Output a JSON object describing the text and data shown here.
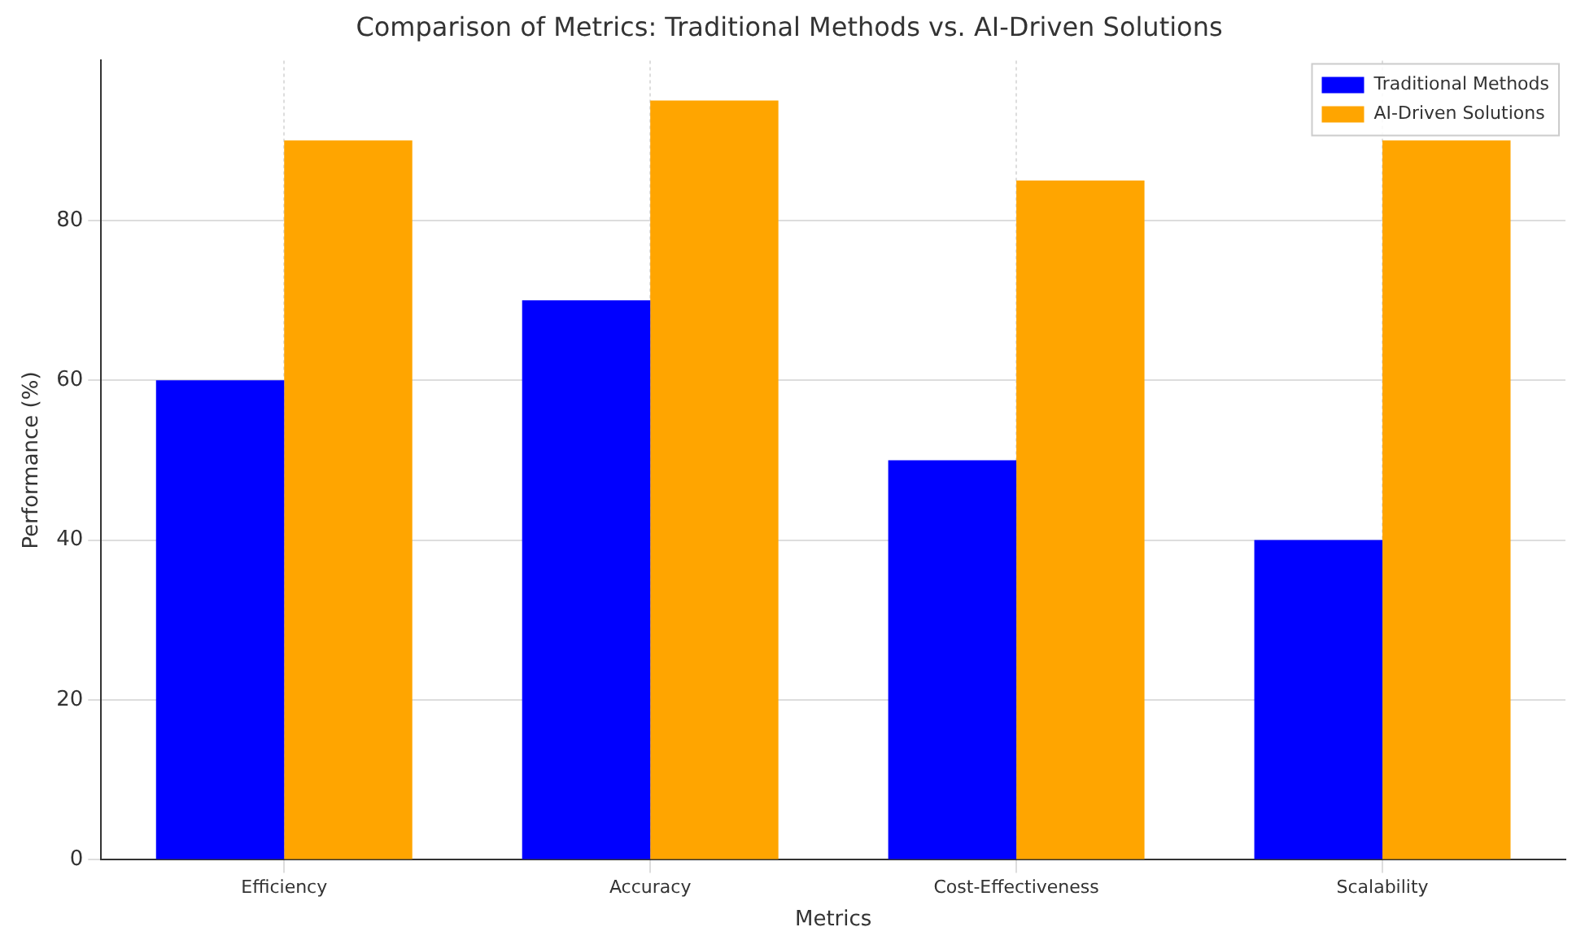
{
  "chart_data": {
    "type": "bar",
    "title": "Comparison of Metrics: Traditional Methods vs. AI-Driven Solutions",
    "xlabel": "Metrics",
    "ylabel": "Performance (%)",
    "categories": [
      "Efficiency",
      "Accuracy",
      "Cost-Effectiveness",
      "Scalability"
    ],
    "series": [
      {
        "name": "Traditional Methods",
        "color": "#0000ff",
        "values": [
          60,
          70,
          50,
          40
        ]
      },
      {
        "name": "AI-Driven Solutions",
        "color": "#ffa500",
        "values": [
          90,
          95,
          85,
          90
        ]
      }
    ],
    "ylim": [
      0,
      100
    ],
    "yticks": [
      0,
      20,
      40,
      60,
      80
    ],
    "grid": true,
    "legend": "top right"
  }
}
